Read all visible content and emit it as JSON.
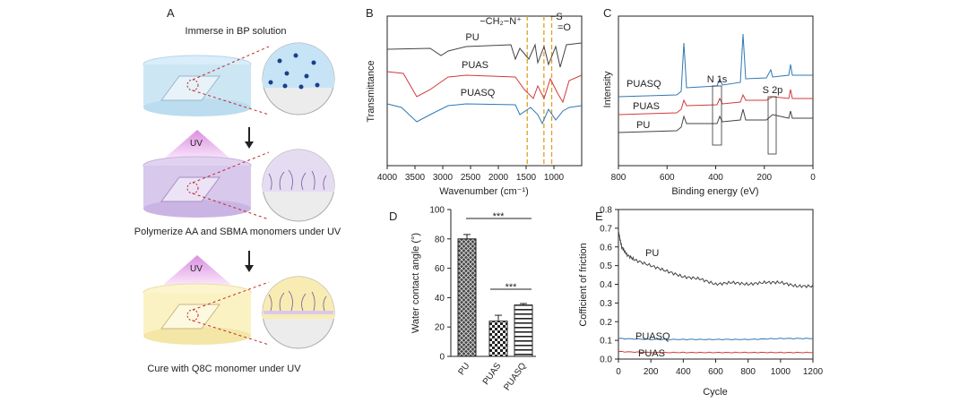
{
  "panel_a": {
    "letter": "A",
    "step1": "Immerse in BP solution",
    "step2": "Polymerize AA and SBMA monomers under UV",
    "step3": "Cure with Q8C monomer under UV",
    "uv": "UV",
    "colors": {
      "blue": "#cde6f4",
      "purple": "#d8c8ec",
      "yellow": "#fbf2c4",
      "pink": "#e9a7e6",
      "dash": "#c0282a"
    }
  },
  "panel_b": {
    "letter": "B",
    "ylabel": "Transmittance",
    "annotation_left": "−CH₂−N⁺",
    "annotation_right_1": "−S",
    "annotation_right_2": "=O"
  },
  "panel_c": {
    "letter": "C",
    "ylabel": "Intensity",
    "n1s": "N 1s",
    "s2p": "S 2p"
  },
  "panel_d": {
    "letter": "D",
    "sig_1": "***",
    "sig_2": "***"
  },
  "panel_e": {
    "letter": "E"
  },
  "chart_data": [
    {
      "type": "line",
      "id": "B",
      "title": "",
      "xlabel": "Wavenumber (cm⁻¹)",
      "ylabel": "Transmittance",
      "xlim": [
        4000,
        500
      ],
      "xticks": [
        4000,
        3500,
        3000,
        2500,
        2000,
        1500,
        1000
      ],
      "series": [
        {
          "name": "PU",
          "color": "#444444"
        },
        {
          "name": "PUAS",
          "color": "#d23a3a"
        },
        {
          "name": "PUASQ",
          "color": "#2f78b4"
        }
      ],
      "reference_lines": [
        1480,
        1180,
        1040
      ]
    },
    {
      "type": "line",
      "id": "C",
      "xlabel": "Binding energy (eV)",
      "ylabel": "Intensity",
      "xlim": [
        800,
        0
      ],
      "xticks": [
        800,
        600,
        400,
        200,
        0
      ],
      "series": [
        {
          "name": "PUASQ",
          "color": "#2f78b4"
        },
        {
          "name": "PUAS",
          "color": "#d23a3a"
        },
        {
          "name": "PU",
          "color": "#444444"
        }
      ],
      "peaks": [
        {
          "label": "N 1s",
          "x": 400
        },
        {
          "label": "S 2p",
          "x": 168
        }
      ]
    },
    {
      "type": "bar",
      "id": "D",
      "ylabel": "Water contact angle (°)",
      "categories": [
        "PU",
        "PUAS",
        "PUASQ"
      ],
      "values": [
        80,
        24,
        35
      ],
      "errors": [
        3,
        4,
        1
      ],
      "ylim": [
        0,
        100
      ],
      "yticks": [
        0,
        20,
        40,
        60,
        80,
        100
      ]
    },
    {
      "type": "line",
      "id": "E",
      "xlabel": "Cycle",
      "ylabel": "Cofficient of friction",
      "xlim": [
        0,
        1200
      ],
      "ylim": [
        0,
        0.8
      ],
      "xticks": [
        0,
        200,
        400,
        600,
        800,
        1000,
        1200
      ],
      "yticks": [
        0.0,
        0.1,
        0.2,
        0.3,
        0.4,
        0.5,
        0.6,
        0.7,
        0.8
      ],
      "series": [
        {
          "name": "PU",
          "color": "#444444",
          "x": [
            0,
            20,
            50,
            100,
            200,
            300,
            400,
            500,
            600,
            700,
            800,
            900,
            1000,
            1100,
            1200
          ],
          "y": [
            0.68,
            0.6,
            0.56,
            0.53,
            0.5,
            0.47,
            0.44,
            0.43,
            0.4,
            0.41,
            0.4,
            0.41,
            0.41,
            0.39,
            0.39
          ]
        },
        {
          "name": "PUASQ",
          "color": "#2f78b4",
          "x": [
            0,
            200,
            400,
            600,
            800,
            1000,
            1200
          ],
          "y": [
            0.11,
            0.105,
            0.105,
            0.105,
            0.105,
            0.11,
            0.11
          ]
        },
        {
          "name": "PUAS",
          "color": "#d23a3a",
          "x": [
            0,
            200,
            400,
            600,
            800,
            1000,
            1200
          ],
          "y": [
            0.04,
            0.035,
            0.035,
            0.035,
            0.035,
            0.035,
            0.035
          ]
        }
      ]
    }
  ]
}
